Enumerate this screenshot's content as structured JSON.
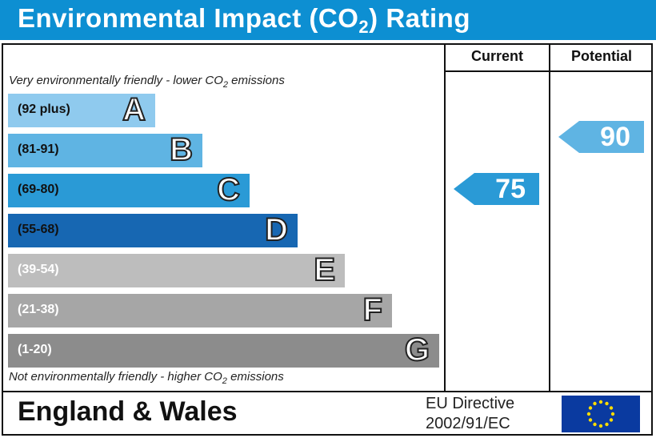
{
  "title": {
    "main": "Environmental Impact (CO",
    "sub": "2",
    "end": ") Rating"
  },
  "columns": {
    "current": "Current",
    "potential": "Potential"
  },
  "notes": {
    "top_a": "Very environmentally friendly - lower CO",
    "top_sub": "2",
    "top_b": " emissions",
    "bottom_a": "Not environmentally friendly - higher CO",
    "bottom_sub": "2",
    "bottom_b": " emissions"
  },
  "chart_data": {
    "type": "bar",
    "categories": [
      "A",
      "B",
      "C",
      "D",
      "E",
      "F",
      "G"
    ],
    "ranges": [
      "(92 plus)",
      "(81-91)",
      "(69-80)",
      "(55-68)",
      "(39-54)",
      "(21-38)",
      "(1-20)"
    ],
    "colors": [
      "#8fcaee",
      "#5fb4e3",
      "#2a9ad6",
      "#1767b2",
      "#bdbdbd",
      "#a6a6a6",
      "#8c8c8c"
    ],
    "current": {
      "value": 75,
      "band": "C",
      "color": "#2a9ad6"
    },
    "potential": {
      "value": 90,
      "band": "B",
      "color": "#5fb4e3"
    }
  },
  "footer": {
    "country": "England & Wales",
    "directive_line1": "EU Directive",
    "directive_line2": "2002/91/EC",
    "flag": "eu-flag"
  }
}
